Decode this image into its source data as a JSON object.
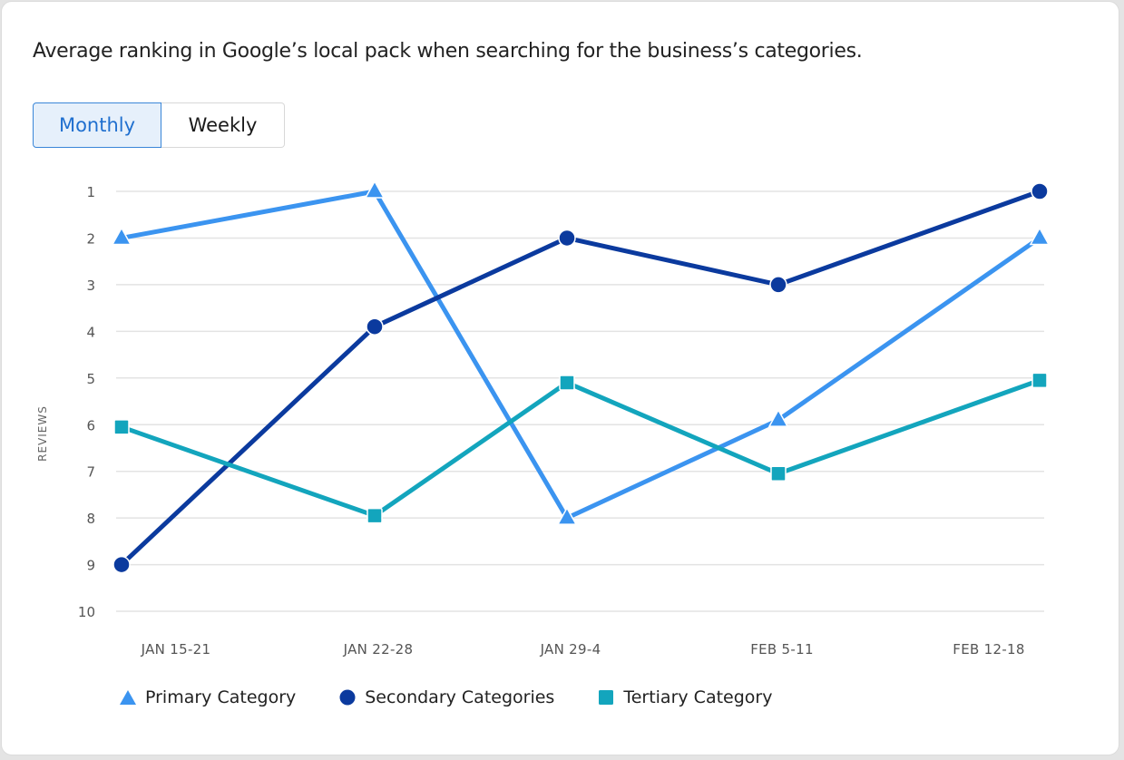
{
  "header": {
    "description": "Average ranking in Google’s local pack when searching for the business’s categories."
  },
  "toggle": {
    "options": [
      "Monthly",
      "Weekly"
    ],
    "selected": "Monthly"
  },
  "colors": {
    "primary": "#3b94f0",
    "secondary": "#0b3a9e",
    "tertiary": "#13a5bd",
    "grid": "#e3e3e3",
    "accent": "#1f6fcf"
  },
  "chart_data": {
    "type": "line",
    "title": "Average ranking in Google’s local pack when searching for the business’s categories.",
    "xlabel": "",
    "ylabel": "REVIEWS",
    "categories": [
      "JAN 15-21",
      "JAN 22-28",
      "JAN 29-4",
      "FEB 5-11",
      "FEB 12-18"
    ],
    "yticks": [
      1,
      2,
      3,
      4,
      5,
      6,
      7,
      8,
      9,
      10
    ],
    "ylim": [
      1,
      10
    ],
    "y_inverted": true,
    "grid": true,
    "legend_position": "bottom",
    "series": [
      {
        "name": "Primary Category",
        "marker": "triangle",
        "color": "#3b94f0",
        "values": [
          2,
          1,
          8,
          5.9,
          2
        ]
      },
      {
        "name": "Secondary Categories",
        "marker": "circle",
        "color": "#0b3a9e",
        "values": [
          9,
          3.9,
          2,
          3,
          1
        ]
      },
      {
        "name": "Tertiary Category",
        "marker": "square",
        "color": "#13a5bd",
        "values": [
          6.05,
          7.95,
          5.1,
          7.05,
          5.05
        ]
      }
    ]
  }
}
